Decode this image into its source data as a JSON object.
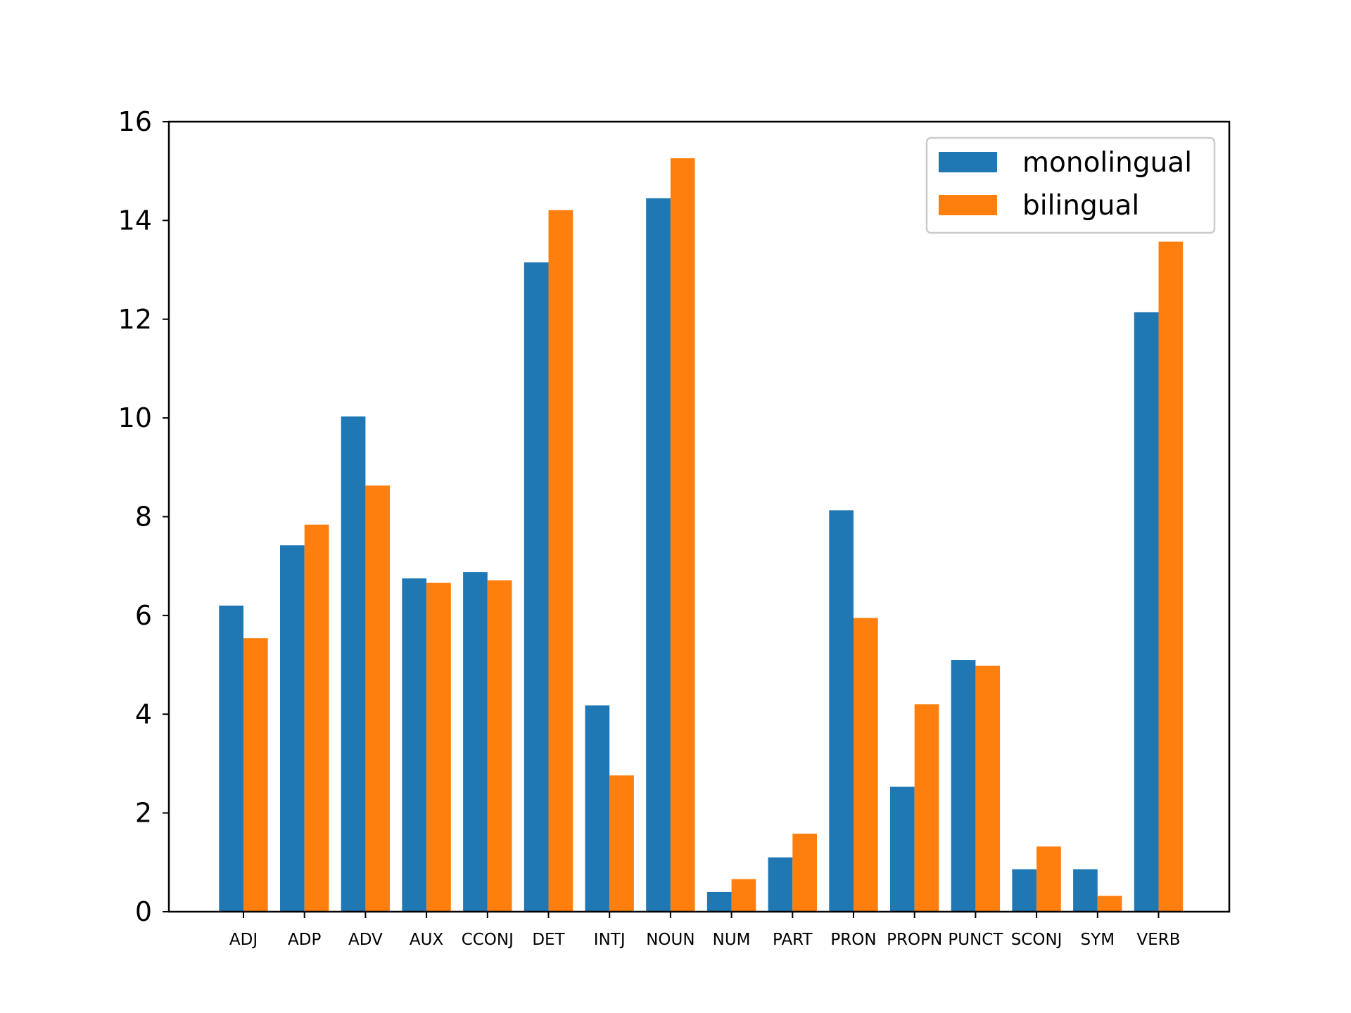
{
  "chart_data": {
    "type": "bar",
    "title": "",
    "xlabel": "",
    "ylabel": "",
    "categories": [
      "ADJ",
      "ADP",
      "ADV",
      "AUX",
      "CCONJ",
      "DET",
      "INTJ",
      "NOUN",
      "NUM",
      "PART",
      "PRON",
      "PROPN",
      "PUNCT",
      "SCONJ",
      "SYM",
      "VERB"
    ],
    "series": [
      {
        "name": "monolingual",
        "color": "#1f77b4",
        "values": [
          6.2,
          7.42,
          10.03,
          6.75,
          6.88,
          13.15,
          4.18,
          14.45,
          0.4,
          1.1,
          8.13,
          2.53,
          5.1,
          0.86,
          0.86,
          12.14
        ]
      },
      {
        "name": "bilingual",
        "color": "#ff7f0e",
        "values": [
          5.54,
          7.84,
          8.63,
          6.66,
          6.71,
          14.21,
          2.76,
          15.26,
          0.66,
          1.58,
          5.95,
          4.2,
          4.98,
          1.32,
          0.32,
          13.57
        ]
      }
    ],
    "ylim": [
      0,
      16
    ],
    "yticks": [
      "0",
      "2",
      "4",
      "6",
      "8",
      "10",
      "12",
      "14",
      "16"
    ],
    "legend_position": "top-right",
    "grid": false
  }
}
